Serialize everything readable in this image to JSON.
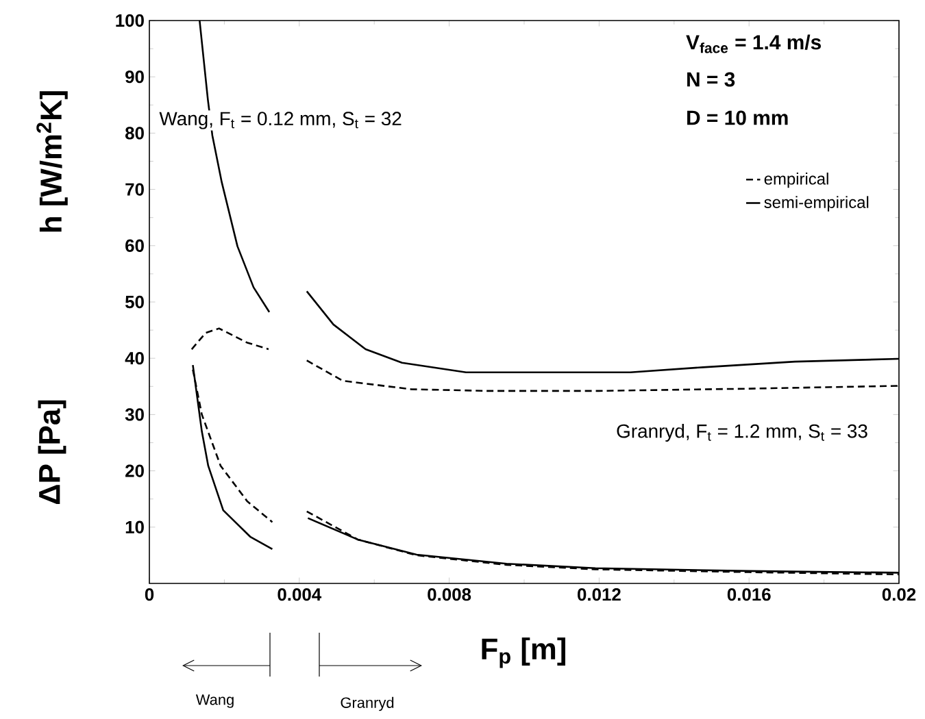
{
  "chart_data": {
    "type": "line",
    "xlabel": "F$_{p}$ [m]",
    "ylabel": "h [W/m$^{2}$K]",
    "annotations": [
      "ΔP [Pa]",
      "Wang,  F$_{t}$ = 0.12 mm, S$_{t}$ = 32",
      "Granryd, F$_{t}$ = 1.2 mm, S$_{t}$ = 33",
      "V$_{face}$ = 1.4 m/s",
      "N = 3",
      "D = 10 mm",
      "Wang",
      "Granryd"
    ],
    "xlim": [
      0,
      0.02
    ],
    "xticks": [
      0,
      0.004,
      0.008,
      0.012,
      0.016,
      0.02
    ],
    "ylim": [
      0,
      100
    ],
    "yticks": [
      10,
      20,
      30,
      40,
      50,
      60,
      70,
      80,
      90,
      100
    ],
    "grid": false,
    "legend": "top right",
    "marker": "none",
    "series": [
      {
        "name": "empirical",
        "color": "#000000",
        "line_style": "dashed",
        "x": [
          0.00113,
          0.0015,
          0.00186,
          0.0026,
          0.00318
        ],
        "values": [
          41.6,
          44.5,
          45.3,
          42.8,
          41.6
        ]
      },
      {
        "name": "semi-empirical",
        "color": "#000000",
        "line_style": "solid",
        "x": [
          0.00134,
          0.00156,
          0.00168,
          0.00193,
          0.00235,
          0.00278,
          0.0032
        ],
        "values": [
          100,
          86,
          79.6,
          71.3,
          59.9,
          52.6,
          48.2
        ]
      },
      {
        "color": "#000000",
        "line_style": "dashed",
        "x": [
          0.0042,
          0.00516,
          0.00698,
          0.009,
          0.012,
          0.016,
          0.02
        ],
        "values": [
          39.6,
          36.0,
          34.5,
          34.2,
          34.2,
          34.6,
          35.1
        ]
      },
      {
        "color": "#000000",
        "line_style": "solid",
        "x": [
          0.0042,
          0.00491,
          0.00577,
          0.00674,
          0.00845,
          0.01283,
          0.01477,
          0.01722,
          0.02
        ],
        "values": [
          51.9,
          46.0,
          41.6,
          39.2,
          37.5,
          37.5,
          38.4,
          39.4,
          39.9
        ]
      },
      {
        "color": "#000000",
        "line_style": "dashed",
        "x": [
          0.00116,
          0.0014,
          0.0019,
          0.00261,
          0.00328
        ],
        "values": [
          38,
          30,
          20.9,
          14.6,
          10.9
        ]
      },
      {
        "color": "#000000",
        "line_style": "solid",
        "x": [
          0.00116,
          0.0014,
          0.00157,
          0.00197,
          0.00269,
          0.00328
        ],
        "values": [
          38.8,
          27,
          20.9,
          13.0,
          8.3,
          6.1
        ]
      },
      {
        "color": "#000000",
        "line_style": "dashed",
        "x": [
          0.0042,
          0.00556,
          0.00713,
          0.00953,
          0.0119,
          0.016,
          0.02
        ],
        "values": [
          12.8,
          7.8,
          5.0,
          3.3,
          2.5,
          2.0,
          1.6
        ]
      },
      {
        "color": "#000000",
        "line_style": "solid",
        "x": [
          0.00423,
          0.00556,
          0.00713,
          0.00953,
          0.0119,
          0.016,
          0.02
        ],
        "values": [
          11.6,
          7.8,
          5.1,
          3.5,
          2.7,
          2.2,
          1.9
        ]
      }
    ]
  }
}
